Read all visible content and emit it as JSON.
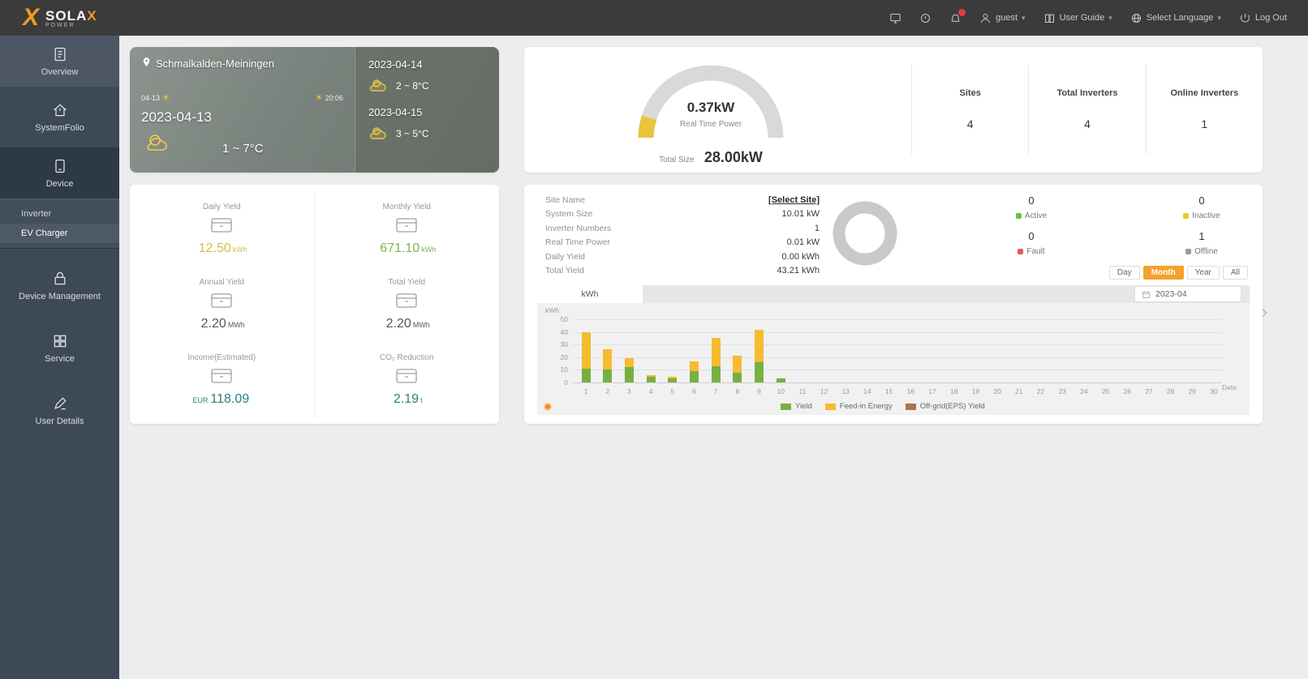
{
  "topbar": {
    "brand": "SOLA",
    "brand_x": "X",
    "brand_sub": "POWER",
    "user_label": "guest",
    "user_guide_label": "User Guide",
    "language_label": "Select Language",
    "logout_label": "Log Out"
  },
  "sidebar": {
    "items": [
      {
        "label": "Overview"
      },
      {
        "label": "SystemFolio"
      },
      {
        "label": "Device"
      },
      {
        "label": "Device Management"
      },
      {
        "label": "Service"
      },
      {
        "label": "User Details"
      }
    ],
    "device_submenu": [
      {
        "label": "Inverter"
      },
      {
        "label": "EV Charger"
      }
    ]
  },
  "weather": {
    "location": "Schmalkalden-Meiningen",
    "sunrise": "04-13",
    "sunset": "20:06",
    "today_date": "2023-04-13",
    "today_temp": "1 ~ 7°C",
    "forecast": [
      {
        "date": "2023-04-14",
        "temp": "2 ~ 8°C"
      },
      {
        "date": "2023-04-15",
        "temp": "3 ~ 5°C"
      }
    ]
  },
  "kpi": {
    "real_time_power_value": "0.37kW",
    "real_time_power_label": "Real Time Power",
    "total_size_label": "Total Size",
    "total_size_value": "28.00kW",
    "stats": [
      {
        "label": "Sites",
        "value": "4"
      },
      {
        "label": "Total Inverters",
        "value": "4"
      },
      {
        "label": "Online Inverters",
        "value": "1"
      }
    ]
  },
  "yield_card": {
    "cells": [
      {
        "label": "Daily Yield",
        "prefix": "",
        "value": "12.50",
        "unit": "kWh",
        "color": "#d4bc3e"
      },
      {
        "label": "Monthly Yield",
        "prefix": "",
        "value": "671.10",
        "unit": "kWh",
        "color": "#7ab648"
      },
      {
        "label": "Annual Yield",
        "prefix": "",
        "value": "2.20",
        "unit": "MWh",
        "color": "#555555"
      },
      {
        "label": "Total Yield",
        "prefix": "",
        "value": "2.20",
        "unit": "MWh",
        "color": "#555555"
      },
      {
        "label": "Income(Estimated)",
        "prefix": "EUR",
        "value": "118.09",
        "unit": "",
        "color": "#2a7f7f"
      },
      {
        "label": "CO₂ Reduction",
        "prefix": "",
        "value": "2.19",
        "unit": "t",
        "color": "#2a7f7f"
      }
    ]
  },
  "site_card": {
    "info": [
      {
        "label": "Site Name",
        "value": "[Select Site]"
      },
      {
        "label": "System Size",
        "value": "10.01 kW"
      },
      {
        "label": "Inverter Numbers",
        "value": "1"
      },
      {
        "label": "Real Time Power",
        "value": "0.01 kW"
      },
      {
        "label": "Daily Yield",
        "value": "0.00 kWh"
      },
      {
        "label": "Total Yield",
        "value": "43.21 kWh"
      }
    ],
    "status": [
      {
        "value": "0",
        "label": "Active",
        "color": "#67c23a"
      },
      {
        "value": "0",
        "label": "Inactive",
        "color": "#e6c72e"
      },
      {
        "value": "0",
        "label": "Fault",
        "color": "#e05a5a"
      },
      {
        "value": "1",
        "label": "Offline",
        "color": "#9a9a9a"
      }
    ],
    "range_buttons": [
      {
        "label": "Day"
      },
      {
        "label": "Month"
      },
      {
        "label": "Year"
      },
      {
        "label": "All"
      }
    ],
    "active_range": "Month",
    "date_value": "2023-04",
    "tab_label": "kWh"
  },
  "chart_data": {
    "type": "bar",
    "stacked": true,
    "title": "Monthly energy per day",
    "unit": "kWh",
    "xlabel": "Date",
    "ylim": [
      0,
      50
    ],
    "yticks": [
      0,
      10,
      20,
      30,
      40,
      50
    ],
    "grid": true,
    "legend_position": "bottom",
    "categories": [
      "1",
      "2",
      "3",
      "4",
      "5",
      "6",
      "7",
      "8",
      "9",
      "10",
      "11",
      "12",
      "13",
      "14",
      "15",
      "16",
      "17",
      "18",
      "19",
      "20",
      "21",
      "22",
      "23",
      "24",
      "25",
      "26",
      "27",
      "28",
      "29",
      "30"
    ],
    "series": [
      {
        "name": "Yield",
        "color": "#76b043",
        "values": [
          11,
          10,
          12,
          4.5,
          3.5,
          9,
          13,
          8,
          16,
          3,
          0,
          0,
          0,
          0,
          0,
          0,
          0,
          0,
          0,
          0,
          0,
          0,
          0,
          0,
          0,
          0,
          0,
          0,
          0,
          0
        ]
      },
      {
        "name": "Feed-in Energy",
        "color": "#f5bc2f",
        "values": [
          29,
          16,
          7,
          1,
          1,
          8,
          22,
          13,
          26,
          0,
          0,
          0,
          0,
          0,
          0,
          0,
          0,
          0,
          0,
          0,
          0,
          0,
          0,
          0,
          0,
          0,
          0,
          0,
          0,
          0
        ]
      },
      {
        "name": "Off-grid(EPS) Yield",
        "color": "#b0714f",
        "values": [
          0,
          0,
          0,
          0,
          0,
          0,
          0,
          0,
          0,
          0,
          0,
          0,
          0,
          0,
          0,
          0,
          0,
          0,
          0,
          0,
          0,
          0,
          0,
          0,
          0,
          0,
          0,
          0,
          0,
          0
        ]
      }
    ]
  }
}
